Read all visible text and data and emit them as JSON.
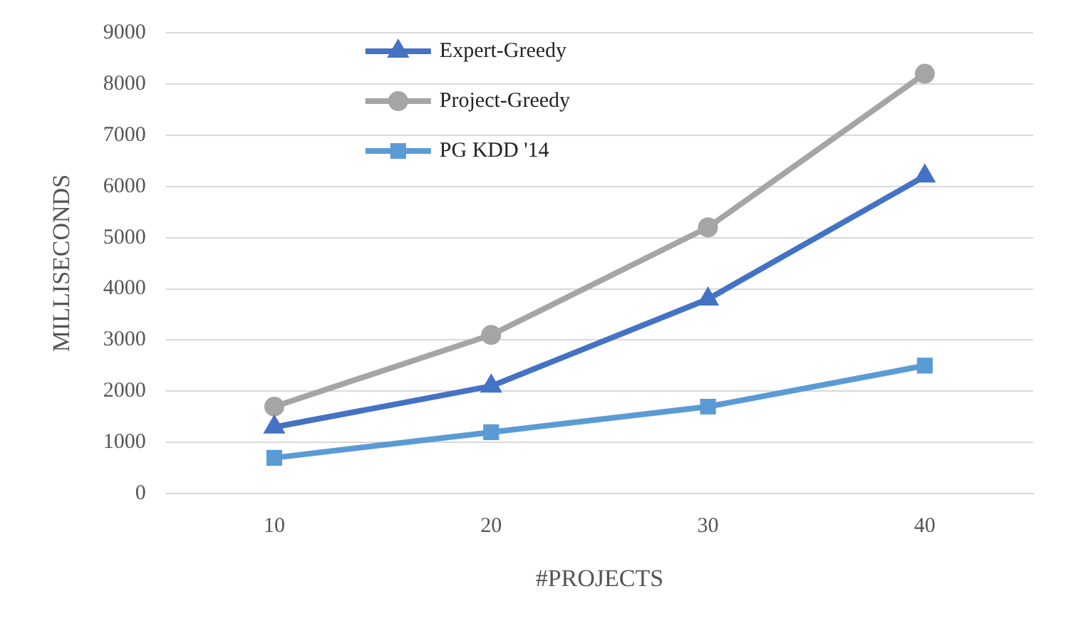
{
  "chart_data": {
    "type": "line",
    "xlabel": "#PROJECTS",
    "ylabel": "MILLISECONDS",
    "categories": [
      "10",
      "20",
      "30",
      "40"
    ],
    "series": [
      {
        "name": "Expert-Greedy",
        "color": "#4472c4",
        "marker": "triangle",
        "values": [
          1300,
          2100,
          3800,
          6200
        ]
      },
      {
        "name": "Project-Greedy",
        "color": "#a5a5a5",
        "marker": "circle",
        "values": [
          1700,
          3100,
          5200,
          8200
        ]
      },
      {
        "name": "PG KDD '14",
        "color": "#5b9bd5",
        "marker": "square",
        "values": [
          700,
          1200,
          1700,
          2500
        ]
      }
    ],
    "ylim": [
      0,
      9000
    ],
    "yticks": [
      0,
      1000,
      2000,
      3000,
      4000,
      5000,
      6000,
      7000,
      8000,
      9000
    ],
    "grid": "y",
    "legend": "top left"
  }
}
